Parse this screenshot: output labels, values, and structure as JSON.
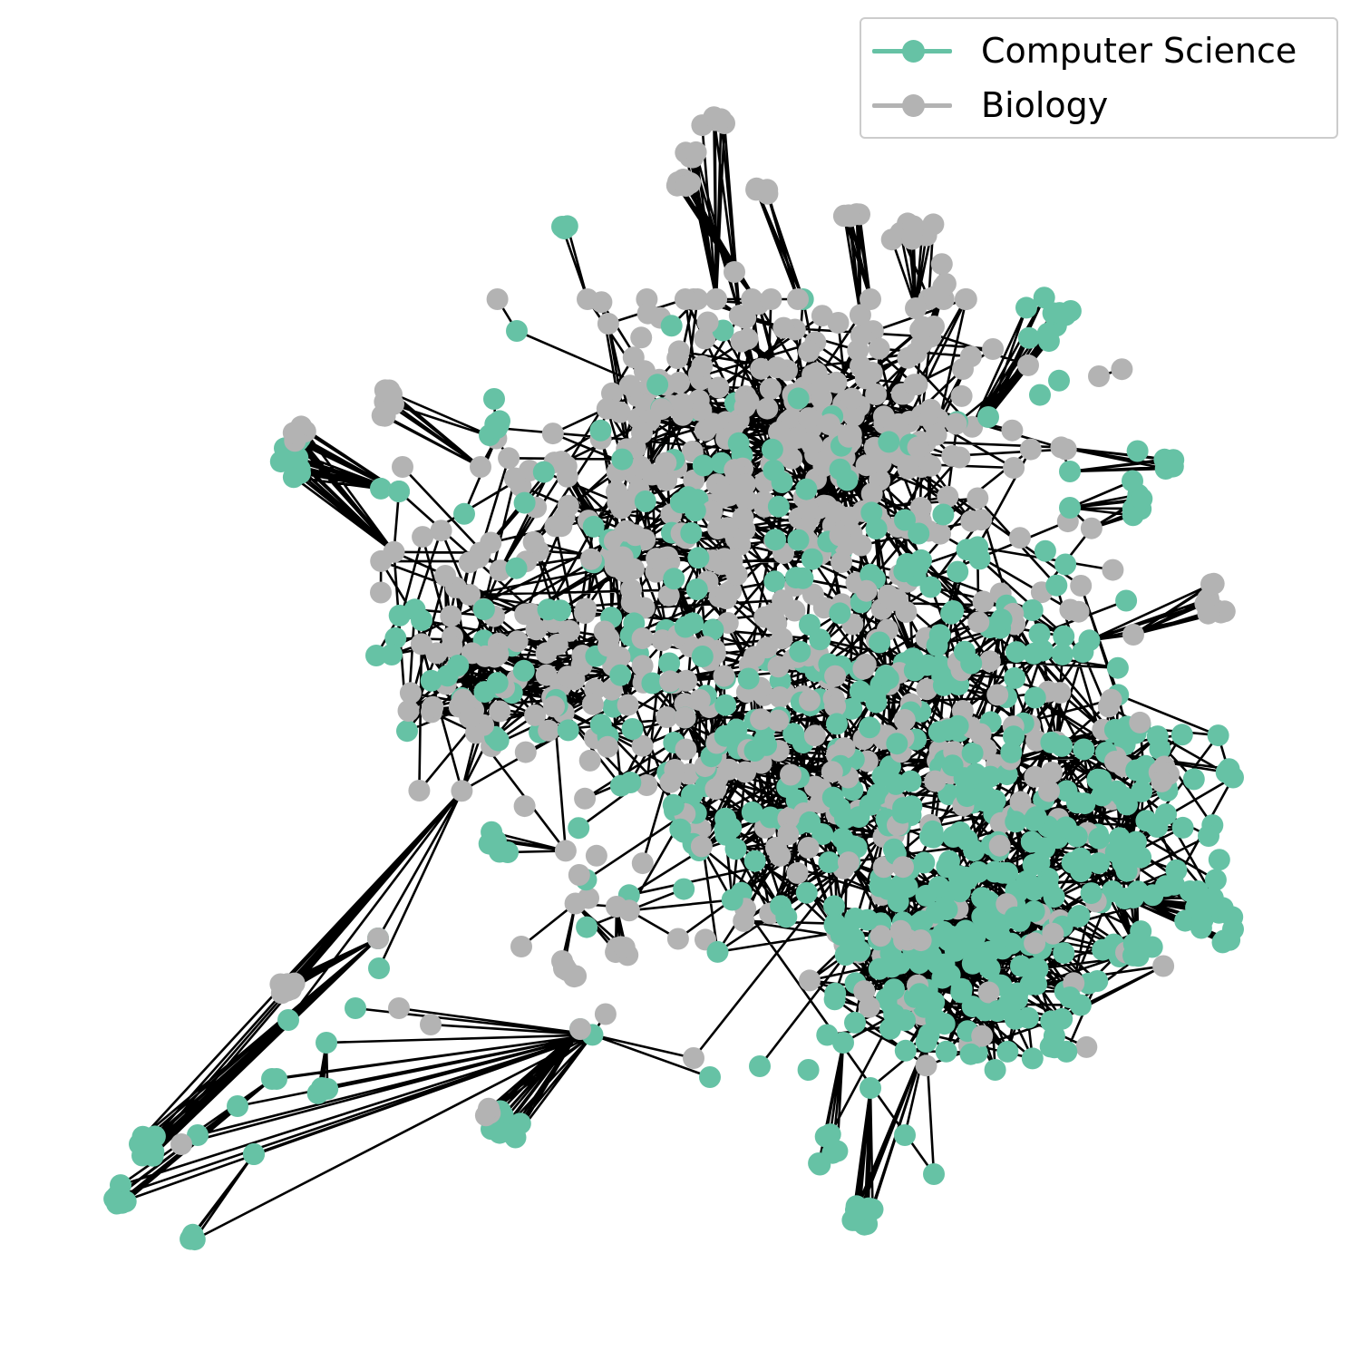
{
  "legend": {
    "items": [
      {
        "label": "Computer Science",
        "color": "#66c2a5"
      },
      {
        "label": "Biology",
        "color": "#b3b3b3"
      }
    ]
  },
  "colors": {
    "edge": "#000000",
    "computer_science": "#66c2a5",
    "biology": "#b3b3b3",
    "background": "#ffffff"
  }
}
